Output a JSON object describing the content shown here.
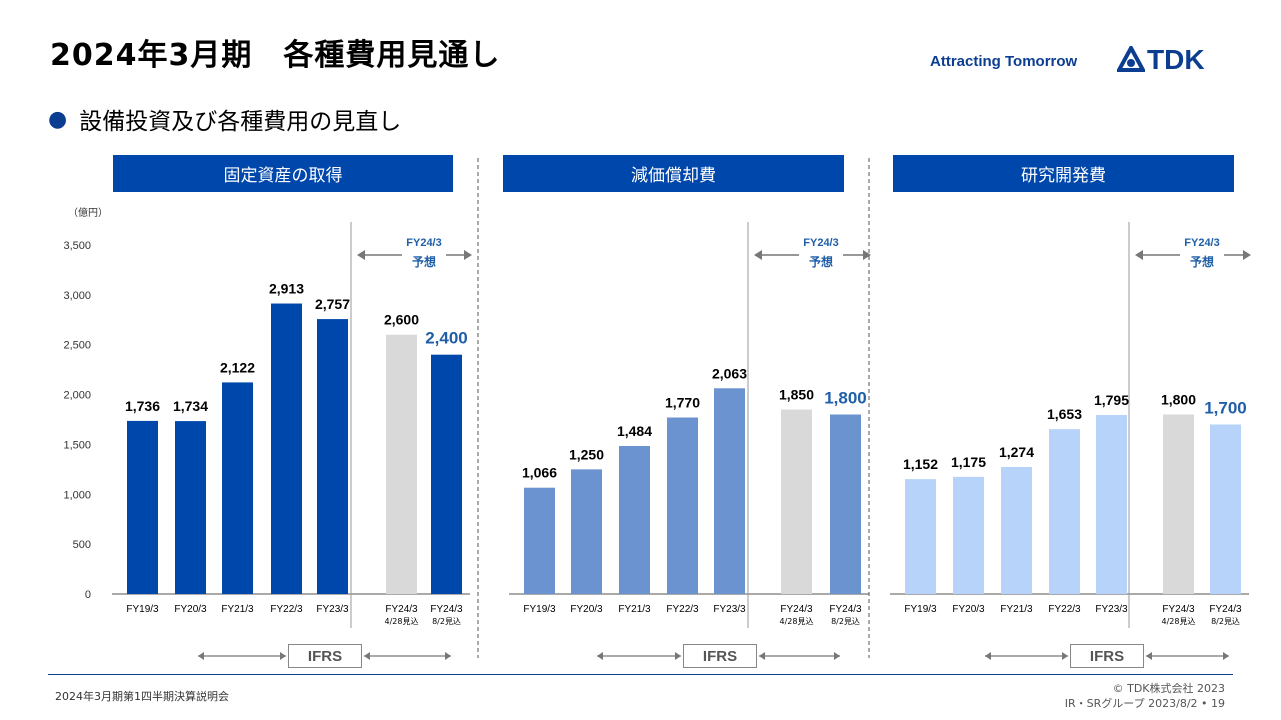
{
  "title": "2024年3月期　各種費用見通し",
  "tagline": "Attracting Tomorrow",
  "logo_text": "TDK",
  "bullet": "設備投資及び各種費用の見直し",
  "unit": "（億円）",
  "ifrs_label": "IFRS",
  "forecast_label": "FY24/3",
  "forecast_sub": "予想",
  "footer": {
    "left": "2024年3月期第1四半期決算説明会",
    "copyright": "© TDK株式会社 2023",
    "page": "IR・SRグループ  2023/8/2 • 19"
  },
  "colors": {
    "header_bg": "#0047ab",
    "capex_bar": "#0047ab",
    "dep_bar": "#6b93d0",
    "rd_bar": "#b7d3fa",
    "prior_forecast_bar": "#d9d9d9",
    "highlight_value": "#1f5fa8"
  },
  "chart_data": [
    {
      "type": "bar",
      "title": "固定資産の取得",
      "ylim": [
        0,
        3500
      ],
      "yticks": [
        "3,500",
        "3,000",
        "2,500",
        "2,000",
        "1,500",
        "1,000",
        "500",
        "0"
      ],
      "categories": [
        "FY19/3",
        "FY20/3",
        "FY21/3",
        "FY22/3",
        "FY23/3",
        "FY24/3\n4/28見込",
        "FY24/3\n8/2見込"
      ],
      "values": [
        1736,
        1734,
        2122,
        2913,
        2757,
        2600,
        2400
      ],
      "labels": [
        "1,736",
        "1,734",
        "2,122",
        "2,913",
        "2,757",
        "2,600",
        "2,400"
      ]
    },
    {
      "type": "bar",
      "title": "減価償却費",
      "ylim": [
        0,
        3500
      ],
      "categories": [
        "FY19/3",
        "FY20/3",
        "FY21/3",
        "FY22/3",
        "FY23/3",
        "FY24/3\n4/28見込",
        "FY24/3\n8/2見込"
      ],
      "values": [
        1066,
        1250,
        1484,
        1770,
        2063,
        1850,
        1800
      ],
      "labels": [
        "1,066",
        "1,250",
        "1,484",
        "1,770",
        "2,063",
        "1,850",
        "1,800"
      ]
    },
    {
      "type": "bar",
      "title": "研究開発費",
      "ylim": [
        0,
        3500
      ],
      "categories": [
        "FY19/3",
        "FY20/3",
        "FY21/3",
        "FY22/3",
        "FY23/3",
        "FY24/3\n4/28見込",
        "FY24/3\n8/2見込"
      ],
      "values": [
        1152,
        1175,
        1274,
        1653,
        1795,
        1800,
        1700
      ],
      "labels": [
        "1,152",
        "1,175",
        "1,274",
        "1,653",
        "1,795",
        "1,800",
        "1,700"
      ]
    }
  ]
}
